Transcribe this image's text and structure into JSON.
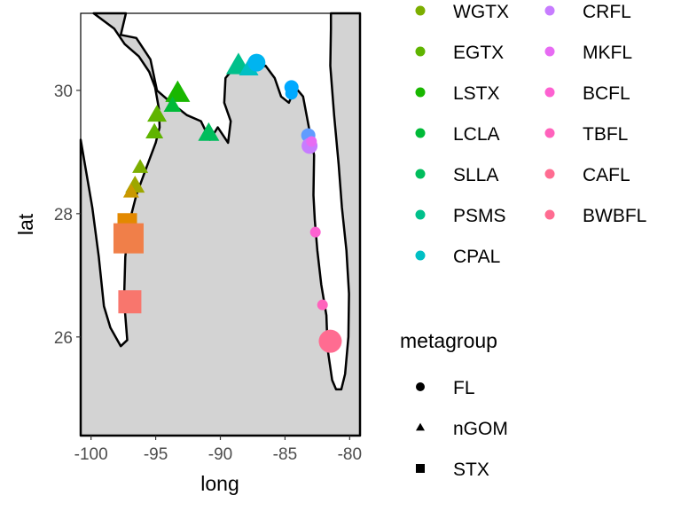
{
  "chart_data": {
    "type": "scatter",
    "title": "",
    "xlabel": "long",
    "ylabel": "lat",
    "xlim": [
      -100.8,
      -79.2
    ],
    "ylim": [
      24.4,
      31.25
    ],
    "x_ticks": [
      -100,
      -95,
      -90,
      -85,
      -80
    ],
    "x_tick_labels": [
      "-100",
      "-95",
      "-90",
      "-85",
      "-80"
    ],
    "y_ticks": [
      26,
      28,
      30
    ],
    "y_tick_labels": [
      "26",
      "28",
      "30"
    ],
    "grid": false,
    "basemap": {
      "fill": "#d3d3d3",
      "stroke": "#000000",
      "outline": [
        [
          -99.8,
          31.25
        ],
        [
          -97.3,
          31.25
        ],
        [
          -97.7,
          30.9
        ],
        [
          -96.5,
          30.85
        ],
        [
          -95.4,
          30.5
        ],
        [
          -94.9,
          30.0
        ],
        [
          -93.8,
          29.8
        ],
        [
          -92.6,
          29.6
        ],
        [
          -91.5,
          29.5
        ],
        [
          -90.8,
          29.2
        ],
        [
          -90.2,
          29.4
        ],
        [
          -89.4,
          29.15
        ],
        [
          -89.2,
          29.5
        ],
        [
          -89.7,
          29.8
        ],
        [
          -89.6,
          30.2
        ],
        [
          -88.8,
          30.4
        ],
        [
          -88.0,
          30.3
        ],
        [
          -87.3,
          30.35
        ],
        [
          -86.5,
          30.4
        ],
        [
          -85.8,
          30.2
        ],
        [
          -85.3,
          29.9
        ],
        [
          -84.7,
          29.8
        ],
        [
          -84.2,
          30.05
        ],
        [
          -83.6,
          29.9
        ],
        [
          -83.2,
          29.45
        ],
        [
          -82.75,
          28.95
        ],
        [
          -82.8,
          28.3
        ],
        [
          -82.7,
          27.9
        ],
        [
          -82.5,
          27.4
        ],
        [
          -82.2,
          26.85
        ],
        [
          -81.8,
          26.35
        ],
        [
          -81.7,
          25.8
        ],
        [
          -81.35,
          25.3
        ],
        [
          -81.05,
          25.15
        ],
        [
          -80.65,
          25.15
        ],
        [
          -80.35,
          25.4
        ],
        [
          -80.1,
          26.0
        ],
        [
          -80.05,
          26.7
        ],
        [
          -80.25,
          27.4
        ],
        [
          -80.6,
          28.1
        ],
        [
          -80.85,
          28.8
        ],
        [
          -81.2,
          29.6
        ],
        [
          -81.5,
          30.4
        ],
        [
          -81.45,
          31.0
        ],
        [
          -81.45,
          31.25
        ],
        [
          -79.2,
          31.25
        ],
        [
          -79.2,
          24.4
        ],
        [
          -100.8,
          24.4
        ],
        [
          -100.8,
          29.2
        ],
        [
          -99.9,
          28.1
        ],
        [
          -99.4,
          27.3
        ],
        [
          -99.0,
          26.5
        ],
        [
          -98.5,
          26.15
        ],
        [
          -97.7,
          25.85
        ],
        [
          -97.2,
          25.95
        ],
        [
          -97.45,
          26.6
        ],
        [
          -97.35,
          27.3
        ],
        [
          -97.05,
          27.85
        ],
        [
          -96.5,
          28.3
        ],
        [
          -95.8,
          28.7
        ],
        [
          -95.0,
          29.15
        ],
        [
          -94.7,
          29.4
        ],
        [
          -94.75,
          29.7
        ],
        [
          -95.05,
          30.05
        ],
        [
          -95.5,
          30.3
        ],
        [
          -96.3,
          30.55
        ],
        [
          -97.4,
          30.75
        ],
        [
          -98.2,
          31.0
        ],
        [
          -99.8,
          31.25
        ]
      ]
    },
    "series": [
      {
        "name": "WGTX",
        "color": "#7cae00",
        "shape": "triangle",
        "points": [
          [
            -96.2,
            28.75,
            9
          ]
        ]
      },
      {
        "name": "EGTX",
        "color": "#5fb400",
        "shape": "triangle",
        "points": [
          [
            -94.9,
            29.6,
            11
          ],
          [
            -95.1,
            29.32,
            10
          ]
        ]
      },
      {
        "name": "LSTX",
        "color": "#19b700",
        "shape": "triangle",
        "points": [
          [
            -93.3,
            29.95,
            14
          ]
        ]
      },
      {
        "name": "LCLA",
        "color": "#00ba38",
        "shape": "triangle",
        "points": [
          [
            -93.7,
            29.75,
            10
          ]
        ]
      },
      {
        "name": "SLLA",
        "color": "#00bd5c",
        "shape": "triangle",
        "points": [
          [
            -90.9,
            29.3,
            12
          ]
        ]
      },
      {
        "name": "PSMS",
        "color": "#00c08b",
        "shape": "triangle",
        "points": [
          [
            -88.6,
            30.4,
            14
          ]
        ]
      },
      {
        "name": "CPAL",
        "color": "#00bfc4",
        "shape": "triangle",
        "points": [
          [
            -87.8,
            30.35,
            11
          ]
        ]
      },
      {
        "name": "",
        "color": "#9da700",
        "shape": "triangle",
        "points": [
          [
            -96.6,
            28.45,
            11
          ]
        ]
      },
      {
        "name": "",
        "color": "#c99800",
        "shape": "triangle",
        "points": [
          [
            -96.9,
            28.35,
            9
          ]
        ]
      },
      {
        "name": "",
        "color": "#00b4f0",
        "shape": "circle",
        "points": [
          [
            -87.2,
            30.45,
            10
          ]
        ]
      },
      {
        "name": "",
        "color": "#00a9ff",
        "shape": "circle",
        "points": [
          [
            -84.5,
            30.05,
            8
          ],
          [
            -84.5,
            29.95,
            7
          ]
        ]
      },
      {
        "name": "",
        "color": "#619cff",
        "shape": "circle",
        "points": [
          [
            -83.2,
            29.27,
            8
          ]
        ]
      },
      {
        "name": "CRFL",
        "color": "#c77cff",
        "shape": "circle",
        "points": [
          [
            -83.1,
            29.1,
            9
          ]
        ]
      },
      {
        "name": "MKFL",
        "color": "#e76bf3",
        "shape": "circle",
        "points": [
          [
            -82.95,
            29.17,
            6
          ]
        ]
      },
      {
        "name": "BCFL",
        "color": "#fd61d1",
        "shape": "circle",
        "points": [
          [
            -82.65,
            27.7,
            6
          ]
        ]
      },
      {
        "name": "TBFL",
        "color": "#ff62bc",
        "shape": "circle",
        "points": [
          [
            -82.1,
            26.52,
            6
          ]
        ]
      },
      {
        "name": "CAFL",
        "color": "#ff6c91",
        "shape": "circle",
        "points": []
      },
      {
        "name": "BWBFL",
        "color": "#ff6c91",
        "shape": "circle",
        "points": [
          [
            -81.5,
            25.93,
            13
          ]
        ]
      },
      {
        "name": "",
        "color": "#e38900",
        "shape": "square",
        "points": [
          [
            -97.2,
            27.85,
            11
          ]
        ]
      },
      {
        "name": "",
        "color": "#f07f49",
        "shape": "square",
        "points": [
          [
            -97.1,
            27.6,
            17
          ]
        ]
      },
      {
        "name": "",
        "color": "#f8766d",
        "shape": "square",
        "points": [
          [
            -97.0,
            26.57,
            13
          ]
        ]
      }
    ]
  },
  "legend": {
    "color_keys": [
      {
        "label": "WGTX",
        "color": "#7cae00"
      },
      {
        "label": "EGTX",
        "color": "#5fb400"
      },
      {
        "label": "LSTX",
        "color": "#19b700"
      },
      {
        "label": "LCLA",
        "color": "#00ba38"
      },
      {
        "label": "SLLA",
        "color": "#00bd5c"
      },
      {
        "label": "PSMS",
        "color": "#00c08b"
      },
      {
        "label": "CPAL",
        "color": "#00bfc4"
      },
      {
        "label": "CRFL",
        "color": "#c77cff"
      },
      {
        "label": "MKFL",
        "color": "#e76bf3"
      },
      {
        "label": "BCFL",
        "color": "#fd61d1"
      },
      {
        "label": "TBFL",
        "color": "#ff62bc"
      },
      {
        "label": "CAFL",
        "color": "#ff6c91"
      },
      {
        "label": "BWBFL",
        "color": "#ff6c91"
      }
    ],
    "shape_title": "metagroup",
    "shape_keys": [
      {
        "label": "FL",
        "shape": "circle"
      },
      {
        "label": "nGOM",
        "shape": "triangle"
      },
      {
        "label": "STX",
        "shape": "square"
      }
    ]
  }
}
